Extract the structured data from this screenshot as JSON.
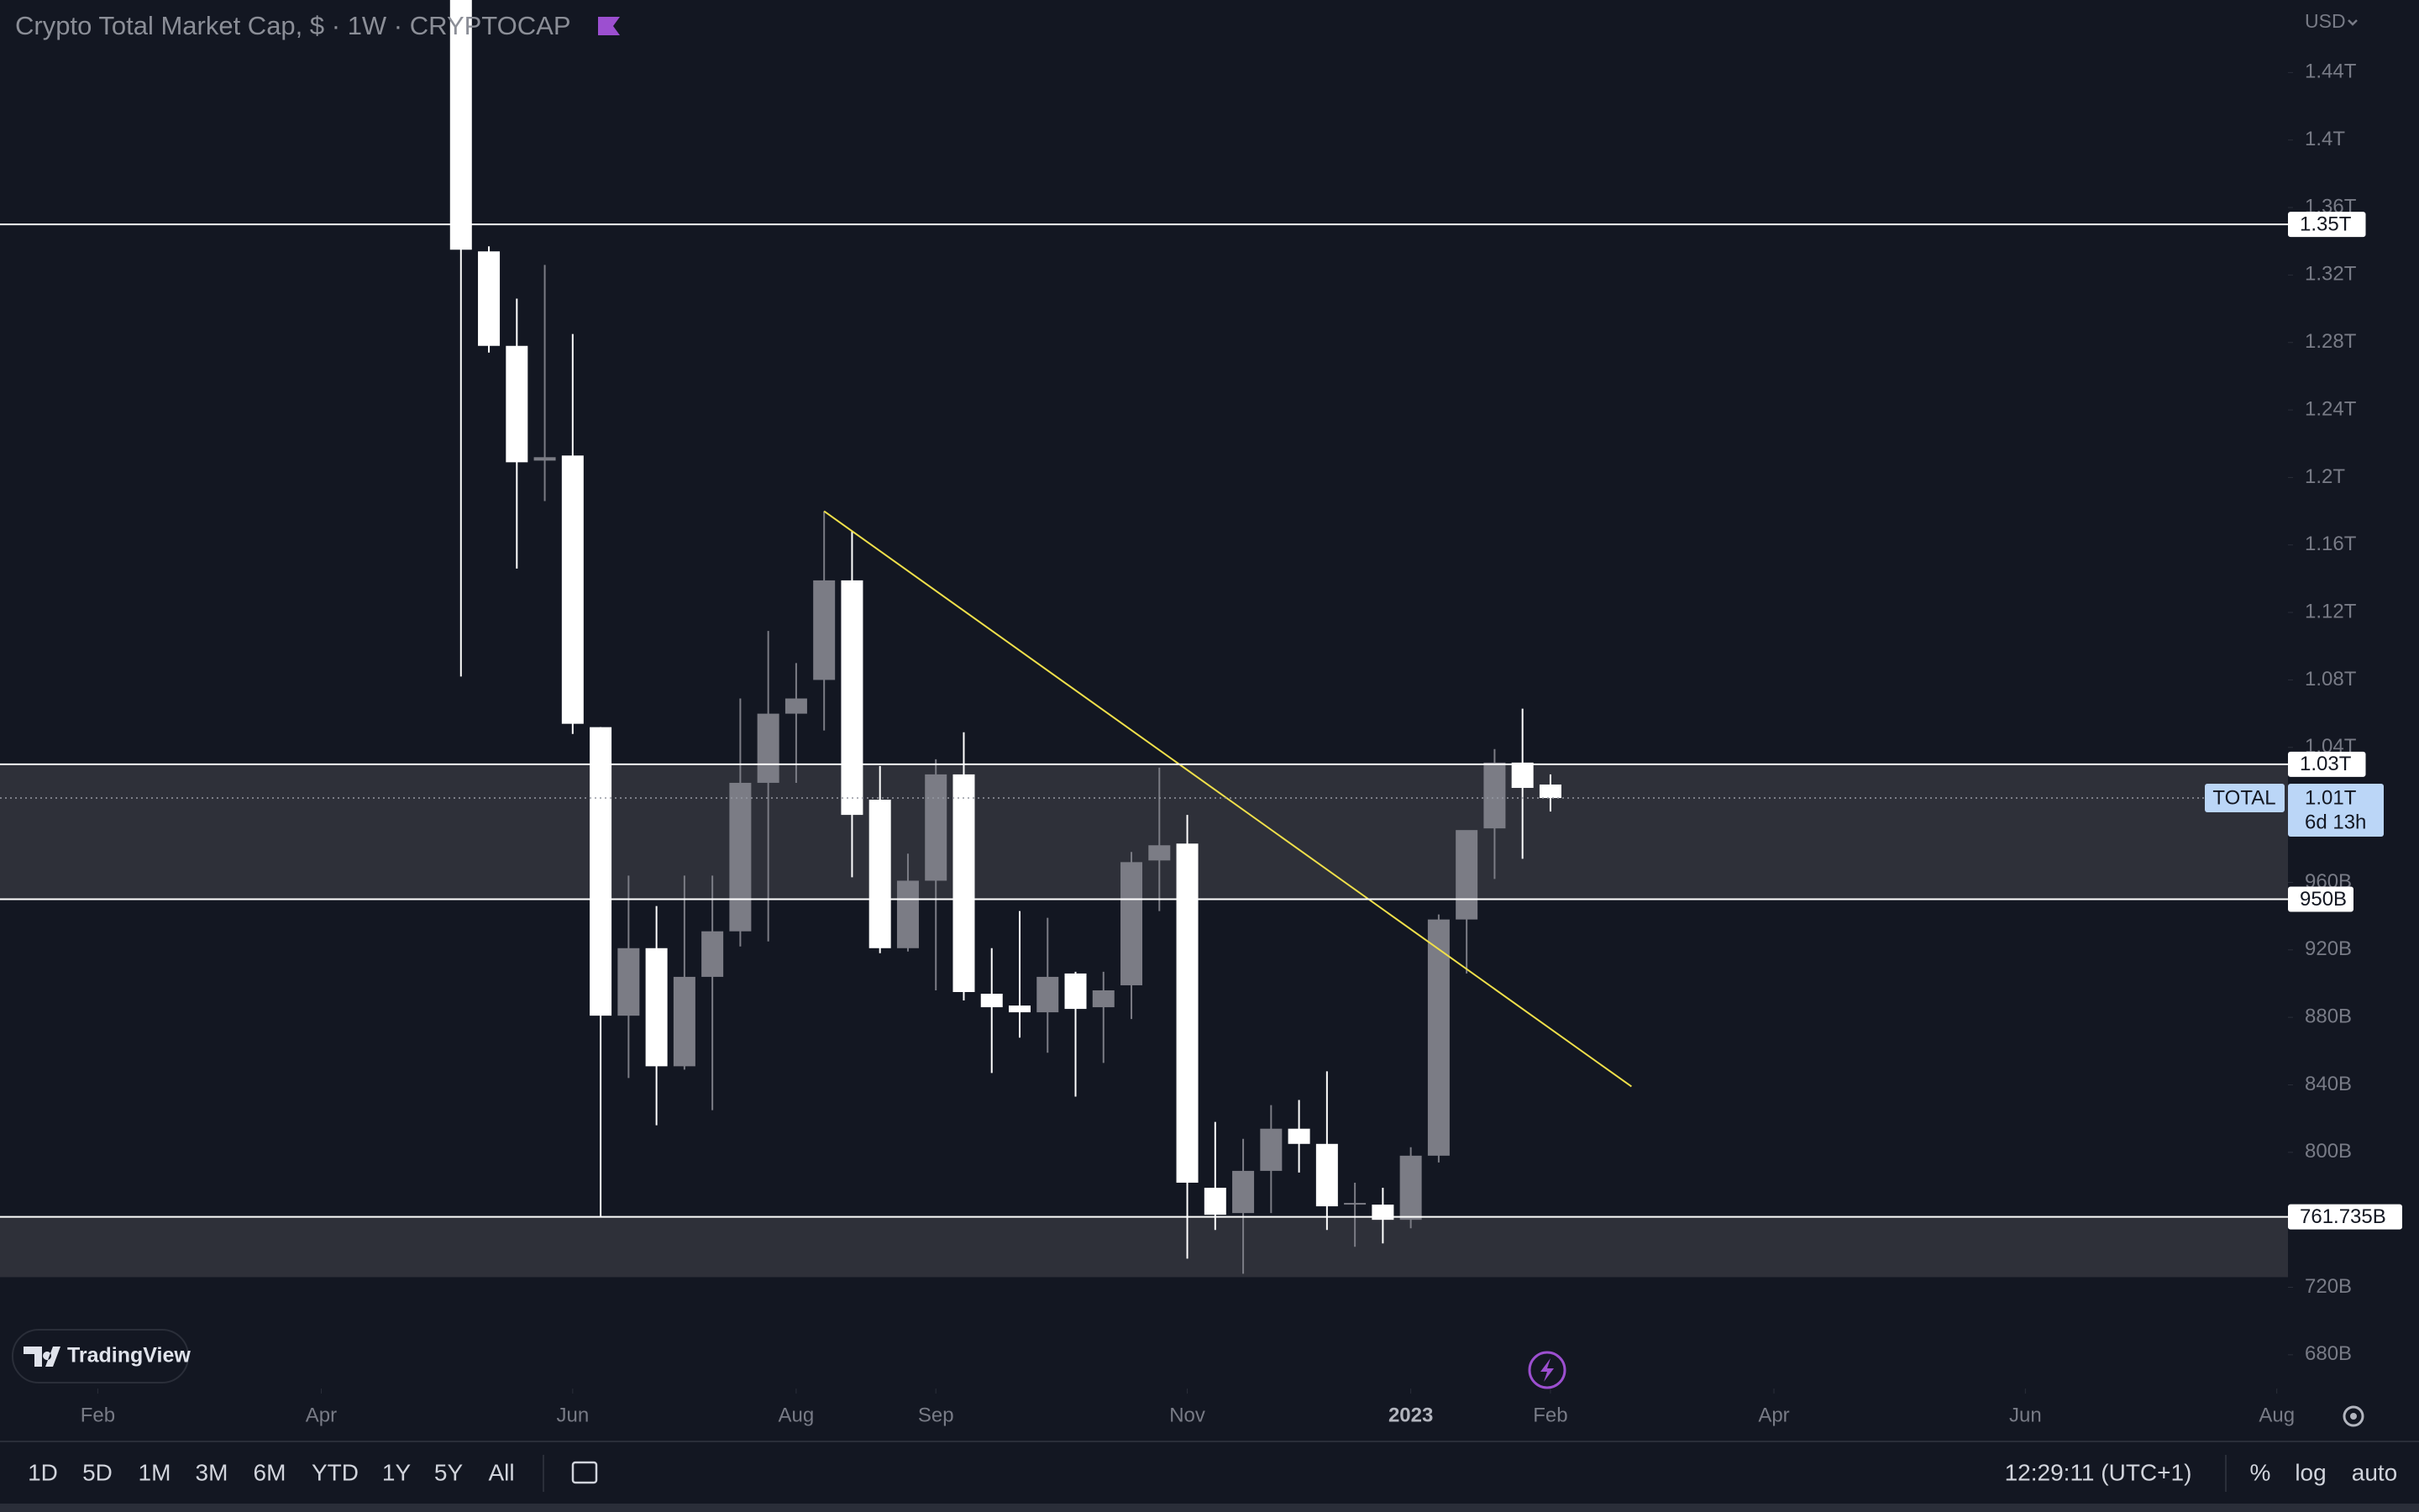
{
  "header": {
    "title": "Crypto Total Market Cap, $ · 1W · CRYPTOCAP",
    "currency": "USD"
  },
  "chart_data": {
    "type": "candlestick",
    "candles": {
      "open": [
        1600,
        1334,
        1278,
        1210,
        1213,
        1052,
        881,
        921,
        851,
        904,
        931,
        1019,
        1060,
        1080,
        1139,
        1009,
        921,
        961,
        1024,
        894,
        887,
        883,
        906,
        886,
        899,
        973,
        983,
        779,
        764,
        789,
        814,
        805,
        769,
        769,
        760,
        798,
        938,
        992,
        1031,
        1018
      ],
      "high": [
        1600,
        1337,
        1306,
        1326,
        1285,
        1052,
        964,
        946,
        964,
        964,
        1069,
        1109,
        1090,
        1180,
        1168,
        1029,
        977,
        1033,
        1049,
        921,
        943,
        939,
        907,
        907,
        978,
        1028,
        1000,
        818,
        808,
        828,
        831,
        848,
        782,
        779,
        803,
        941,
        964,
        1039,
        1063,
        1024
      ],
      "low": [
        1082,
        1274,
        1146,
        1186,
        1048,
        762,
        844,
        816,
        849,
        825,
        922,
        925,
        1019,
        1050,
        963,
        918,
        919,
        896,
        890,
        847,
        868,
        859,
        833,
        853,
        879,
        943,
        737,
        754,
        728,
        764,
        788,
        754,
        744,
        746,
        755,
        794,
        906,
        962,
        974,
        1002
      ],
      "close": [
        1335,
        1278,
        1209,
        1212,
        1054,
        881,
        921,
        851,
        904,
        931,
        1019,
        1060,
        1069,
        1139,
        1000,
        921,
        961,
        1024,
        895,
        886,
        883,
        904,
        885,
        896,
        972,
        982,
        782,
        763,
        789,
        814,
        805,
        768,
        770,
        760,
        798,
        938,
        991,
        1031,
        1016,
        1010
      ]
    },
    "up_color": "#7b7c85",
    "down_color": "#ffffff",
    "xlim": [
      -16.5,
      65.4
    ],
    "xticks": [
      {
        "value": -13,
        "label": "Feb"
      },
      {
        "value": -5,
        "label": "Apr"
      },
      {
        "value": 4,
        "label": "Jun"
      },
      {
        "value": 12,
        "label": "Aug"
      },
      {
        "value": 17,
        "label": "Sep"
      },
      {
        "value": 26,
        "label": "Nov"
      },
      {
        "value": 34,
        "label": "2023"
      },
      {
        "value": 39,
        "label": "Feb"
      },
      {
        "value": 47,
        "label": "Apr"
      },
      {
        "value": 56,
        "label": "Jun"
      },
      {
        "value": 65,
        "label": "Aug"
      }
    ],
    "ylim": [
      660,
      1483
    ],
    "yticks": [
      {
        "value": 1440,
        "label": "1.44T"
      },
      {
        "value": 1400,
        "label": "1.4T"
      },
      {
        "value": 1360,
        "label": "1.36T"
      },
      {
        "value": 1320,
        "label": "1.32T"
      },
      {
        "value": 1280,
        "label": "1.28T"
      },
      {
        "value": 1240,
        "label": "1.24T"
      },
      {
        "value": 1200,
        "label": "1.2T"
      },
      {
        "value": 1160,
        "label": "1.16T"
      },
      {
        "value": 1120,
        "label": "1.12T"
      },
      {
        "value": 1080,
        "label": "1.08T"
      },
      {
        "value": 1040,
        "label": "1.04T"
      },
      {
        "value": 960,
        "label": "960B"
      },
      {
        "value": 920,
        "label": "920B"
      },
      {
        "value": 880,
        "label": "880B"
      },
      {
        "value": 840,
        "label": "840B"
      },
      {
        "value": 800,
        "label": "800B"
      },
      {
        "value": 720,
        "label": "720B"
      },
      {
        "value": 680,
        "label": "680B"
      }
    ],
    "levels": [
      {
        "value": 1350,
        "label": "1.35T"
      },
      {
        "value": 1030,
        "label": "1.03T"
      },
      {
        "value": 950,
        "label": "950B"
      },
      {
        "value": 761.735,
        "label": "761.735B"
      }
    ],
    "zones": [
      {
        "from": 950,
        "to": 1030
      },
      {
        "from": 726,
        "to": 761.735
      }
    ],
    "trendline": {
      "x": [
        13,
        41.9
      ],
      "y": [
        1180,
        839
      ],
      "color": "#f0e04a"
    },
    "current": {
      "name": "TOTAL",
      "value": 1010,
      "label": "1.01T",
      "countdown": "6d 13h"
    }
  },
  "branding": "TradingView",
  "toolbar": {
    "ranges": [
      "1D",
      "5D",
      "1M",
      "3M",
      "6M",
      "YTD",
      "1Y",
      "5Y",
      "All"
    ],
    "clock": "12:29:11 (UTC+1)",
    "options": [
      "%",
      "log",
      "auto"
    ]
  }
}
